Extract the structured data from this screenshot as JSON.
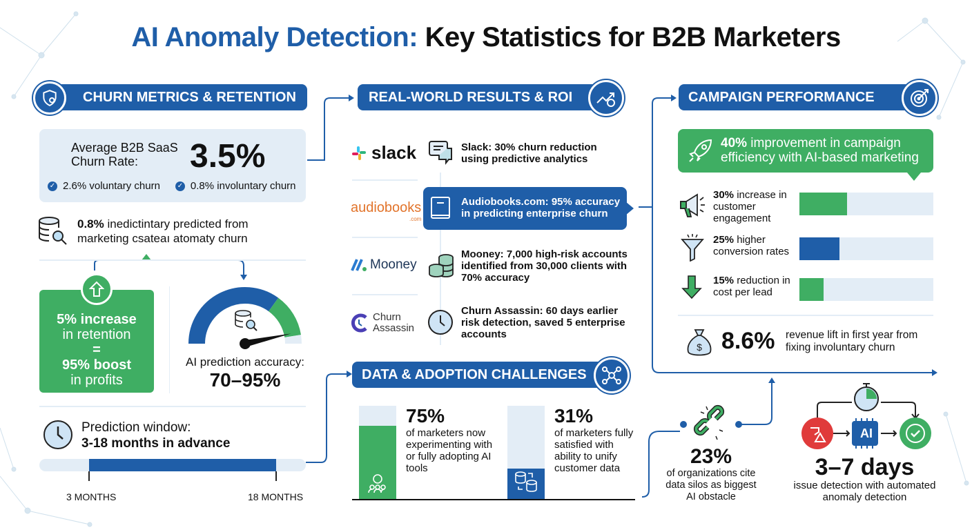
{
  "title": {
    "highlight": "AI Anomaly Detection:",
    "rest": " Key Statistics for B2B Marketers"
  },
  "colors": {
    "blue": "#1f5ea8",
    "green": "#3fae63",
    "light": "#e3edf6",
    "red": "#e03b3b"
  },
  "churn": {
    "header": "CHURN METRICS & RETENTION",
    "avg_label": "Average B2B SaaS Churn Rate:",
    "avg_value": "3.5%",
    "voluntary": "2.6% voluntary churn",
    "involuntary": "0.8% involuntary churn",
    "predicted_bold": "0.8%",
    "predicted_rest": " inedictintary predicted from marketing csateaı atomaty churn",
    "retention": {
      "line1": "5% increase",
      "line2": "in retention",
      "eq": "=",
      "line3": "95% boost",
      "line4": "in profits"
    },
    "gauge": {
      "label": "AI prediction accuracy:",
      "value": "70–95%",
      "min_percent": 70,
      "max_percent": 95
    },
    "window": {
      "label": "Prediction window:",
      "value": "3-18 months in advance",
      "start_label": "3 MONTHS",
      "end_label": "18 MONTHS",
      "start": 3,
      "end": 18
    }
  },
  "results": {
    "header": "REAL-WORLD RESULTS & ROI",
    "items": [
      {
        "logo": "slack",
        "text": "Slack: 30% churn reduction using predictive analytics",
        "icon": "chat-icon"
      },
      {
        "logo": "audiobooks",
        "logo_sub": ".com",
        "text": "Audiobooks.com: 95% accuracy in predicting enterprise churn",
        "icon": "book-icon"
      },
      {
        "logo": "Mooney",
        "text": "Mooney: 7,000 high-risk accounts identified from 30,000 clients with 70% accuracy",
        "icon": "coins-icon"
      },
      {
        "logo": "Churn Assassin",
        "text": "Churn Assassin: 60 days earlier risk detection, saved 5 enterprise accounts",
        "icon": "clock-icon"
      }
    ]
  },
  "challenges": {
    "header": "DATA & ADOPTION CHALLENGES",
    "items": [
      {
        "value": "75%",
        "percent": 75,
        "text": "of marketers now experimenting with or fully adopting AI tools"
      },
      {
        "value": "31%",
        "percent": 31,
        "text": "of marketers fully satisfied with ability to unify customer data"
      }
    ]
  },
  "campaign": {
    "header": "CAMPAIGN PERFORMANCE",
    "banner_bold": "40%",
    "banner_rest": " improvement in campaign efficiency with AI-based marketing",
    "bars": [
      {
        "bold": "30%",
        "rest": " increase in customer engagement",
        "percent": 30,
        "color": "green",
        "icon": "megaphone-icon"
      },
      {
        "bold": "25%",
        "rest": " higher conversion rates",
        "percent": 25,
        "color": "blue",
        "icon": "funnel-icon"
      },
      {
        "bold": "15%",
        "rest": " reduction in cost per lead",
        "percent": 15,
        "color": "green",
        "icon": "arrow-down-icon"
      }
    ],
    "revenue_value": "8.6%",
    "revenue_text": "revenue lift in first year from fixing involuntary churn"
  },
  "silos": {
    "value": "23%",
    "text": "of organizations cite data silos as biggest AI obstacle"
  },
  "detection": {
    "chip": "AI",
    "value": "3–7 days",
    "text": "issue detection with automated anomaly detection"
  }
}
